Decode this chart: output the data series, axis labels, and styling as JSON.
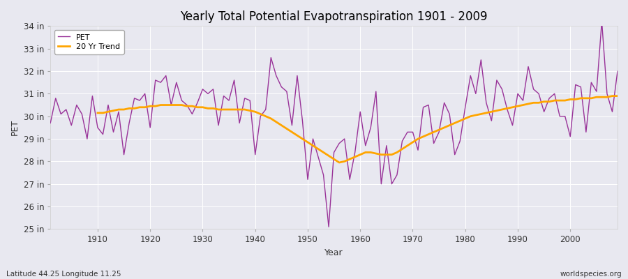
{
  "title": "Yearly Total Potential Evapotranspiration 1901 - 2009",
  "xlabel": "Year",
  "ylabel": "PET",
  "subtitle_left": "Latitude 44.25 Longitude 11.25",
  "subtitle_right": "worldspecies.org",
  "pet_color": "#993399",
  "trend_color": "#FFA500",
  "bg_color": "#e8e8f0",
  "ylim": [
    25,
    34
  ],
  "ytick_labels": [
    "25 in",
    "26 in",
    "27 in",
    "28 in",
    "29 in",
    "30 in",
    "31 in",
    "32 in",
    "33 in",
    "34 in"
  ],
  "ytick_values": [
    25,
    26,
    27,
    28,
    29,
    30,
    31,
    32,
    33,
    34
  ],
  "years": [
    1901,
    1902,
    1903,
    1904,
    1905,
    1906,
    1907,
    1908,
    1909,
    1910,
    1911,
    1912,
    1913,
    1914,
    1915,
    1916,
    1917,
    1918,
    1919,
    1920,
    1921,
    1922,
    1923,
    1924,
    1925,
    1926,
    1927,
    1928,
    1929,
    1930,
    1931,
    1932,
    1933,
    1934,
    1935,
    1936,
    1937,
    1938,
    1939,
    1940,
    1941,
    1942,
    1943,
    1944,
    1945,
    1946,
    1947,
    1948,
    1949,
    1950,
    1951,
    1952,
    1953,
    1954,
    1955,
    1956,
    1957,
    1958,
    1959,
    1960,
    1961,
    1962,
    1963,
    1964,
    1965,
    1966,
    1967,
    1968,
    1969,
    1970,
    1971,
    1972,
    1973,
    1974,
    1975,
    1976,
    1977,
    1978,
    1979,
    1980,
    1981,
    1982,
    1983,
    1984,
    1985,
    1986,
    1987,
    1988,
    1989,
    1990,
    1991,
    1992,
    1993,
    1994,
    1995,
    1996,
    1997,
    1998,
    1999,
    2000,
    2001,
    2002,
    2003,
    2004,
    2005,
    2006,
    2007,
    2008,
    2009
  ],
  "pet_values": [
    29.7,
    30.8,
    30.1,
    30.3,
    29.6,
    30.5,
    30.1,
    29.0,
    30.9,
    29.5,
    29.2,
    30.5,
    29.3,
    30.2,
    28.3,
    29.7,
    30.8,
    30.7,
    31.0,
    29.5,
    31.6,
    31.5,
    31.8,
    30.5,
    31.5,
    30.7,
    30.5,
    30.1,
    30.6,
    31.2,
    31.0,
    31.2,
    29.6,
    30.9,
    30.7,
    31.6,
    29.7,
    30.8,
    30.7,
    28.3,
    30.0,
    30.3,
    32.6,
    31.8,
    31.3,
    31.1,
    29.6,
    31.8,
    29.8,
    27.2,
    29.0,
    28.2,
    27.4,
    25.1,
    28.4,
    28.8,
    29.0,
    27.2,
    28.4,
    30.2,
    28.7,
    29.5,
    31.1,
    27.0,
    28.7,
    27.0,
    27.4,
    28.9,
    29.3,
    29.3,
    28.5,
    30.4,
    30.5,
    28.8,
    29.3,
    30.6,
    30.1,
    28.3,
    28.9,
    30.4,
    31.8,
    31.0,
    32.5,
    30.6,
    29.8,
    31.6,
    31.2,
    30.3,
    29.6,
    31.0,
    30.7,
    32.2,
    31.2,
    31.0,
    30.2,
    30.8,
    31.0,
    30.0,
    30.0,
    29.1,
    31.4,
    31.3,
    29.3,
    31.5,
    31.1,
    34.2,
    31.0,
    30.2,
    32.0
  ],
  "trend_years": [
    1910,
    1911,
    1912,
    1913,
    1914,
    1915,
    1916,
    1917,
    1918,
    1919,
    1920,
    1921,
    1922,
    1923,
    1924,
    1925,
    1926,
    1927,
    1928,
    1929,
    1930,
    1931,
    1932,
    1933,
    1934,
    1935,
    1936,
    1937,
    1938,
    1939,
    1940,
    1941,
    1942,
    1943,
    1944,
    1945,
    1946,
    1947,
    1948,
    1949,
    1950,
    1951,
    1952,
    1953,
    1954,
    1955,
    1956,
    1957,
    1958,
    1959,
    1960,
    1961,
    1962,
    1963,
    1964,
    1965,
    1966,
    1967,
    1968,
    1969,
    1970,
    1971,
    1972,
    1973,
    1974,
    1975,
    1976,
    1977,
    1978,
    1979,
    1980,
    1981,
    1982,
    1983,
    1984,
    1985,
    1986,
    1987,
    1988,
    1989,
    1990,
    1991,
    1992,
    1993,
    1994,
    1995,
    1996,
    1997,
    1998,
    1999,
    2000,
    2001,
    2002,
    2003,
    2004,
    2005,
    2006,
    2007,
    2008,
    2009
  ],
  "trend_values": [
    30.15,
    30.15,
    30.2,
    30.25,
    30.3,
    30.3,
    30.35,
    30.35,
    30.4,
    30.4,
    30.45,
    30.45,
    30.5,
    30.5,
    30.5,
    30.5,
    30.5,
    30.45,
    30.45,
    30.4,
    30.4,
    30.35,
    30.35,
    30.3,
    30.3,
    30.3,
    30.3,
    30.3,
    30.3,
    30.25,
    30.2,
    30.1,
    30.0,
    29.9,
    29.75,
    29.6,
    29.45,
    29.3,
    29.15,
    29.0,
    28.85,
    28.7,
    28.55,
    28.4,
    28.25,
    28.1,
    27.95,
    28.0,
    28.1,
    28.2,
    28.3,
    28.4,
    28.4,
    28.35,
    28.3,
    28.3,
    28.3,
    28.4,
    28.55,
    28.7,
    28.85,
    29.0,
    29.1,
    29.2,
    29.3,
    29.4,
    29.5,
    29.6,
    29.7,
    29.8,
    29.9,
    30.0,
    30.05,
    30.1,
    30.15,
    30.2,
    30.25,
    30.3,
    30.35,
    30.4,
    30.45,
    30.5,
    30.55,
    30.6,
    30.6,
    30.65,
    30.65,
    30.7,
    30.7,
    30.7,
    30.75,
    30.75,
    30.8,
    30.8,
    30.8,
    30.85,
    30.85,
    30.85,
    30.9,
    30.9
  ]
}
